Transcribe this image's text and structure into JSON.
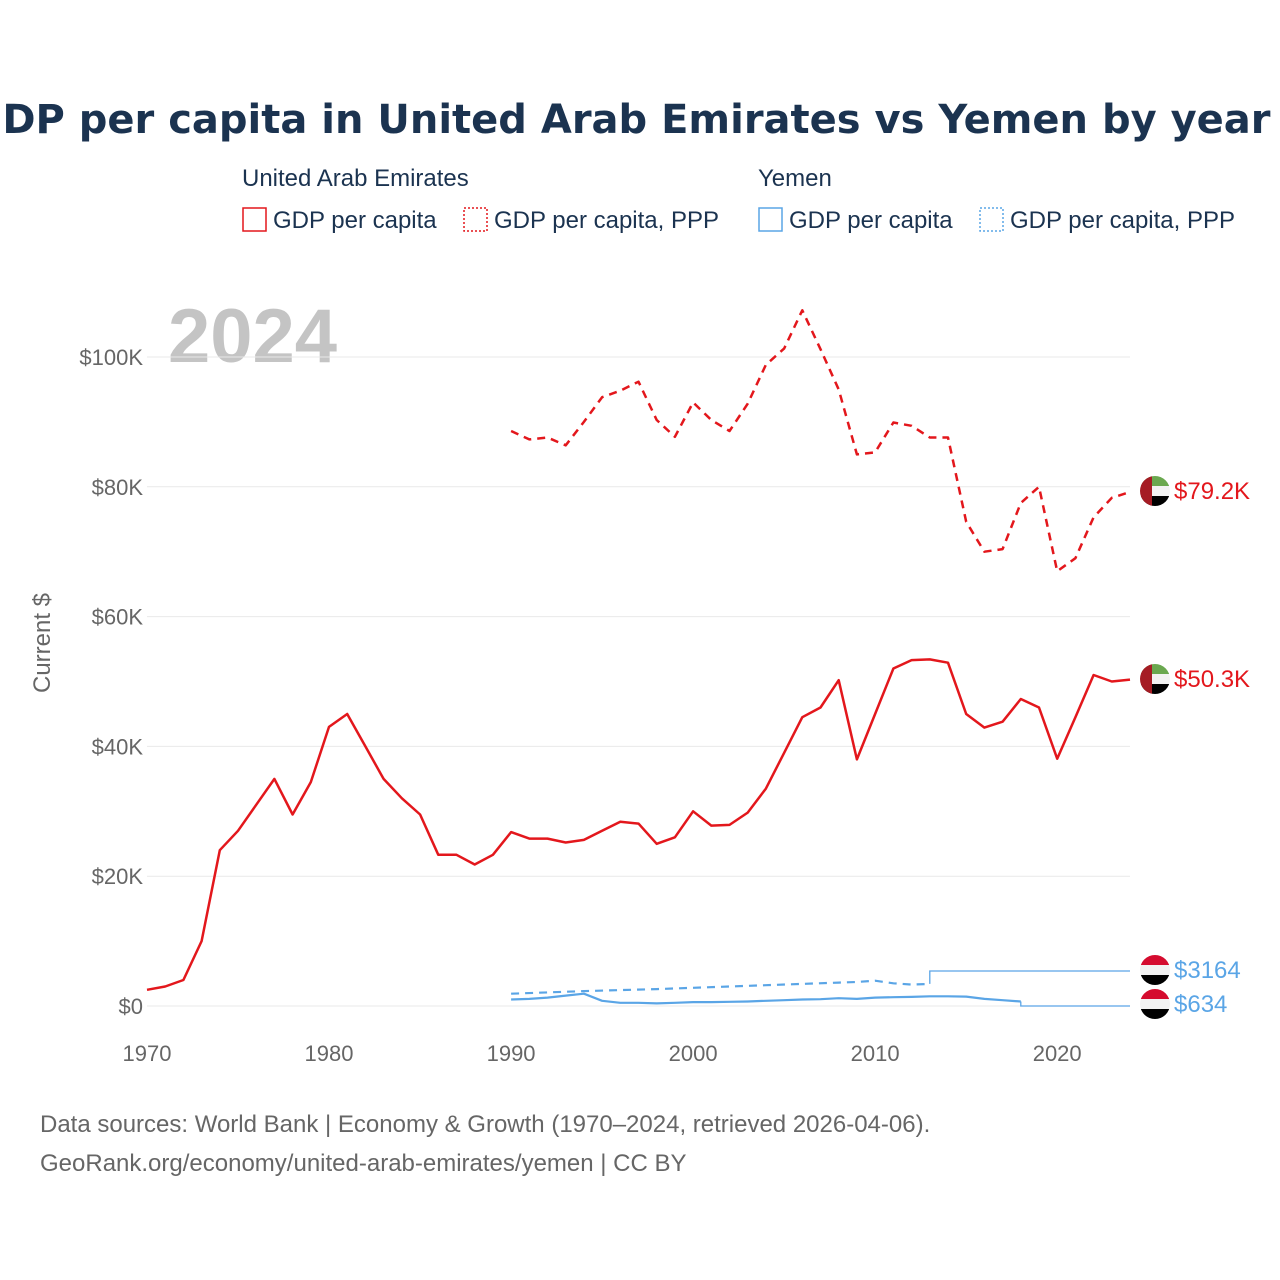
{
  "colors": {
    "uae": "#e3171c",
    "yemen": "#5aa5e6"
  },
  "source_line1": "Data sources: World Bank | Economy & Growth (1970–2024, retrieved 2026-04-06).",
  "source_line2": "GeoRank.org/economy/united-arab-emirates/yemen | CC BY",
  "chart_data": {
    "type": "line",
    "title": "GDP per capita in United Arab Emirates vs Yemen by year",
    "ylabel": "Current $",
    "year_annotation": "2024",
    "xlim": [
      1970,
      2024
    ],
    "ylim": [
      0,
      110000
    ],
    "x_ticks": [
      1970,
      1980,
      1990,
      2000,
      2010,
      2020
    ],
    "x_tick_labels": [
      "1970",
      "1980",
      "1990",
      "2000",
      "2010",
      "2020"
    ],
    "y_ticks": [
      0,
      20000,
      40000,
      60000,
      80000,
      100000
    ],
    "y_tick_labels": [
      "$0",
      "$20K",
      "$40K",
      "$60K",
      "$80K",
      "$100K"
    ],
    "legend_groups": [
      {
        "country": "United Arab Emirates",
        "items": [
          "GDP per capita",
          "GDP per capita, PPP"
        ]
      },
      {
        "country": "Yemen",
        "items": [
          "GDP per capita",
          "GDP per capita, PPP"
        ]
      }
    ],
    "end_labels": [
      {
        "series": "uae_ppp",
        "text": "$79.2K"
      },
      {
        "series": "uae_gdp",
        "text": "$50.3K"
      },
      {
        "series": "yemen_ppp",
        "text": "$3164"
      },
      {
        "series": "yemen_gdp",
        "text": "$634"
      }
    ],
    "series": [
      {
        "id": "uae_gdp",
        "name": "United Arab Emirates — GDP per capita",
        "color_key": "uae",
        "dash": false,
        "x": [
          1970,
          1971,
          1972,
          1973,
          1974,
          1975,
          1976,
          1977,
          1978,
          1979,
          1980,
          1981,
          1982,
          1983,
          1984,
          1985,
          1986,
          1987,
          1988,
          1989,
          1990,
          1991,
          1992,
          1993,
          1994,
          1995,
          1996,
          1997,
          1998,
          1999,
          2000,
          2001,
          2002,
          2003,
          2004,
          2005,
          2006,
          2007,
          2008,
          2009,
          2010,
          2011,
          2012,
          2013,
          2014,
          2015,
          2016,
          2017,
          2018,
          2019,
          2020,
          2021,
          2022,
          2023,
          2024
        ],
        "values": [
          2500,
          3000,
          4000,
          10000,
          24000,
          27000,
          31000,
          35000,
          29500,
          34500,
          43000,
          45000,
          40000,
          35000,
          32000,
          29500,
          23300,
          23300,
          21800,
          23300,
          26800,
          25800,
          25800,
          25200,
          25600,
          27000,
          28400,
          28100,
          25000,
          26000,
          30000,
          27800,
          27900,
          29800,
          33500,
          39000,
          44500,
          46000,
          50200,
          38000,
          45000,
          52000,
          53300,
          53400,
          52900,
          45000,
          42900,
          43800,
          47300,
          46000,
          38100,
          44500,
          51000,
          50000,
          50300
        ]
      },
      {
        "id": "uae_ppp",
        "name": "United Arab Emirates — GDP per capita, PPP",
        "color_key": "uae",
        "dash": true,
        "x": [
          1990,
          1991,
          1992,
          1993,
          1994,
          1995,
          1996,
          1997,
          1998,
          1999,
          2000,
          2001,
          2002,
          2003,
          2004,
          2005,
          2006,
          2007,
          2008,
          2009,
          2010,
          2011,
          2012,
          2013,
          2014,
          2015,
          2016,
          2017,
          2018,
          2019,
          2020,
          2021,
          2022,
          2023,
          2024
        ],
        "values": [
          88600,
          87300,
          87600,
          86400,
          90000,
          93800,
          94800,
          96200,
          90300,
          87700,
          93000,
          90300,
          88600,
          92800,
          98800,
          101300,
          107200,
          101200,
          95000,
          85000,
          85300,
          89900,
          89400,
          87600,
          87600,
          74600,
          70000,
          70400,
          77500,
          80000,
          67000,
          69000,
          75300,
          78300,
          79200
        ]
      },
      {
        "id": "yemen_ppp",
        "name": "Yemen — GDP per capita, PPP",
        "color_key": "yemen",
        "dash": true,
        "x": [
          1990,
          1992,
          1994,
          1996,
          1998,
          2000,
          2002,
          2004,
          2006,
          2008,
          2009,
          2010,
          2011,
          2012,
          2013
        ],
        "values": [
          1900,
          2100,
          2300,
          2450,
          2600,
          2800,
          3000,
          3200,
          3400,
          3600,
          3700,
          3900,
          3500,
          3300,
          3400
        ]
      },
      {
        "id": "yemen_gdp",
        "name": "Yemen — GDP per capita",
        "color_key": "yemen",
        "dash": false,
        "x": [
          1990,
          1991,
          1992,
          1993,
          1994,
          1995,
          1996,
          1997,
          1998,
          1999,
          2000,
          2001,
          2002,
          2003,
          2004,
          2005,
          2006,
          2007,
          2008,
          2009,
          2010,
          2011,
          2012,
          2013,
          2014,
          2015,
          2016,
          2017,
          2018
        ],
        "values": [
          1000,
          1100,
          1300,
          1600,
          1900,
          800,
          500,
          500,
          400,
          500,
          600,
          600,
          650,
          700,
          800,
          900,
          1000,
          1050,
          1200,
          1100,
          1300,
          1350,
          1400,
          1500,
          1500,
          1450,
          1100,
          900,
          700
        ]
      }
    ],
    "step_series": [
      {
        "id": "yemen_ppp_step",
        "color_key": "yemen",
        "x": [
          2013,
          2013,
          2024
        ],
        "values": [
          3400,
          5400,
          5400
        ]
      },
      {
        "id": "yemen_gdp_step",
        "color_key": "yemen",
        "x": [
          2018,
          2018,
          2024
        ],
        "values": [
          700,
          0,
          0
        ]
      }
    ]
  }
}
